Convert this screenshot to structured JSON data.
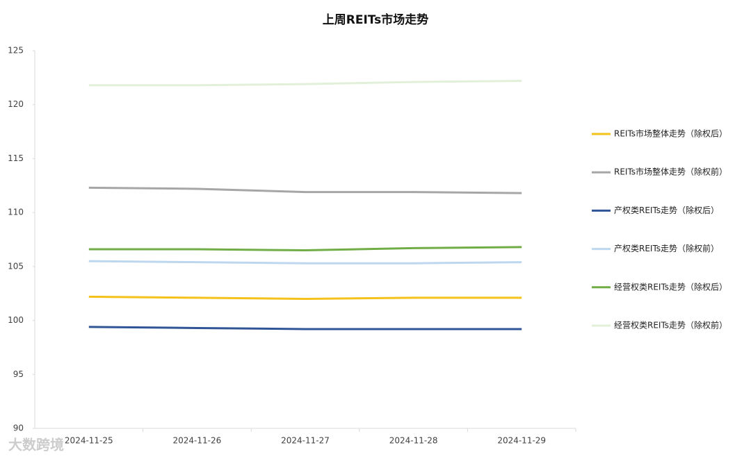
{
  "chart_data": {
    "type": "line",
    "title": "上周REITs市场走势",
    "categories": [
      "2024-11-25",
      "2024-11-26",
      "2024-11-27",
      "2024-11-28",
      "2024-11-29"
    ],
    "series": [
      {
        "name": "REITs市场整体走势（除权后）",
        "color": "#f5c21b",
        "values": [
          102.2,
          102.1,
          102.0,
          102.1,
          102.1
        ]
      },
      {
        "name": "REITs市场整体走势（除权前）",
        "color": "#a6a6a6",
        "values": [
          112.3,
          112.2,
          111.9,
          111.9,
          111.8
        ]
      },
      {
        "name": "产权类REITs走势（除权后）",
        "color": "#2f5597",
        "values": [
          99.4,
          99.3,
          99.2,
          99.2,
          99.2
        ]
      },
      {
        "name": "产权类REITs走势（除权前）",
        "color": "#bdd7ee",
        "values": [
          105.5,
          105.4,
          105.3,
          105.3,
          105.4
        ]
      },
      {
        "name": "经营权类REITs走势（除权后）",
        "color": "#70ad47",
        "values": [
          106.6,
          106.6,
          106.5,
          106.7,
          106.8
        ]
      },
      {
        "name": "经营权类REITs走势（除权前）",
        "color": "#e2f0d9",
        "values": [
          121.8,
          121.8,
          121.9,
          122.1,
          122.2
        ]
      }
    ],
    "ylim": [
      90,
      125
    ],
    "yticks": [
      90,
      95,
      100,
      105,
      110,
      115,
      120,
      125
    ],
    "grid": false,
    "legend": "right"
  },
  "watermark": "大数跨境"
}
